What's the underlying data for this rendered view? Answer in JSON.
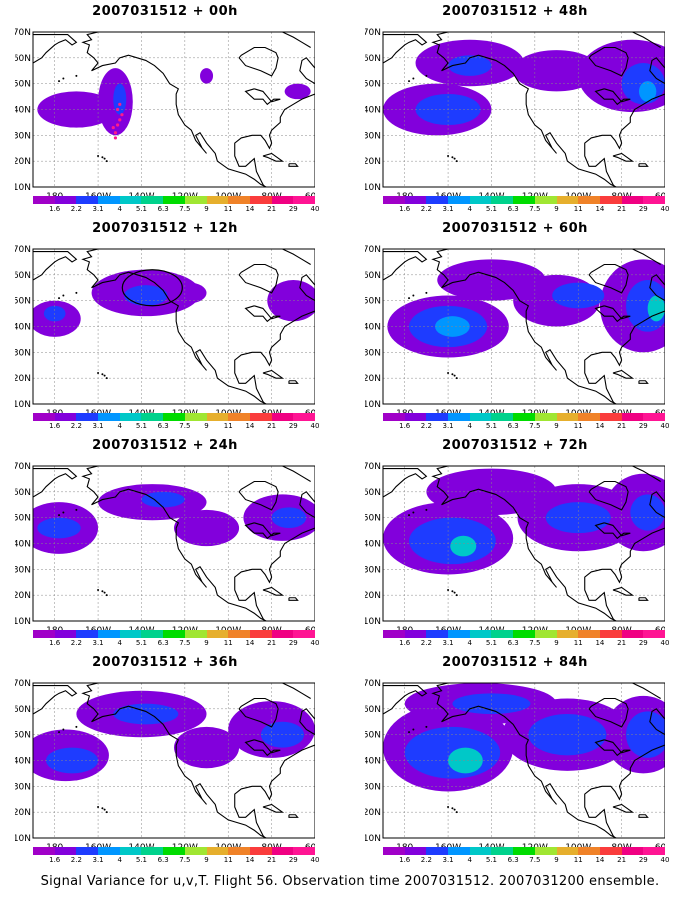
{
  "panels": [
    {
      "title": "2007031512 + 00h",
      "lead": "00h",
      "circle": false,
      "blobs": [
        {
          "lon": -170,
          "lat": 40,
          "rx": 18,
          "ry": 7,
          "level": 1
        },
        {
          "lon": -152,
          "lat": 43,
          "rx": 8,
          "ry": 13,
          "level": 1
        },
        {
          "lon": -150,
          "lat": 44,
          "rx": 3,
          "ry": 6,
          "level": 2
        },
        {
          "lon": -110,
          "lat": 53,
          "rx": 3,
          "ry": 3,
          "level": 1
        },
        {
          "lon": -68,
          "lat": 47,
          "rx": 6,
          "ry": 3,
          "level": 1
        }
      ]
    },
    {
      "title": "2007031512 + 48h",
      "lead": "48h",
      "circle": false,
      "blobs": [
        {
          "lon": -165,
          "lat": 40,
          "rx": 25,
          "ry": 10,
          "level": 1
        },
        {
          "lon": -160,
          "lat": 40,
          "rx": 15,
          "ry": 6,
          "level": 2
        },
        {
          "lon": -150,
          "lat": 58,
          "rx": 25,
          "ry": 9,
          "level": 1
        },
        {
          "lon": -150,
          "lat": 57,
          "rx": 10,
          "ry": 4,
          "level": 2
        },
        {
          "lon": -110,
          "lat": 55,
          "rx": 20,
          "ry": 8,
          "level": 1
        },
        {
          "lon": -75,
          "lat": 53,
          "rx": 25,
          "ry": 14,
          "level": 1
        },
        {
          "lon": -70,
          "lat": 50,
          "rx": 10,
          "ry": 8,
          "level": 2
        },
        {
          "lon": -68,
          "lat": 47,
          "rx": 4,
          "ry": 4,
          "level": 3
        }
      ]
    },
    {
      "title": "2007031512 + 12h",
      "lead": "12h",
      "circle": true,
      "blobs": [
        {
          "lon": -180,
          "lat": 43,
          "rx": 12,
          "ry": 7,
          "level": 1
        },
        {
          "lon": -180,
          "lat": 45,
          "rx": 5,
          "ry": 3,
          "level": 2
        },
        {
          "lon": -138,
          "lat": 53,
          "rx": 25,
          "ry": 9,
          "level": 1
        },
        {
          "lon": -138,
          "lat": 52,
          "rx": 10,
          "ry": 4,
          "level": 2
        },
        {
          "lon": -118,
          "lat": 53,
          "rx": 8,
          "ry": 4,
          "level": 1
        },
        {
          "lon": -70,
          "lat": 50,
          "rx": 12,
          "ry": 8,
          "level": 1
        }
      ]
    },
    {
      "title": "2007031512 + 60h",
      "lead": "60h",
      "circle": false,
      "blobs": [
        {
          "lon": -160,
          "lat": 40,
          "rx": 28,
          "ry": 12,
          "level": 1
        },
        {
          "lon": -160,
          "lat": 40,
          "rx": 18,
          "ry": 8,
          "level": 2
        },
        {
          "lon": -158,
          "lat": 40,
          "rx": 8,
          "ry": 4,
          "level": 3
        },
        {
          "lon": -140,
          "lat": 58,
          "rx": 25,
          "ry": 8,
          "level": 1
        },
        {
          "lon": -110,
          "lat": 50,
          "rx": 20,
          "ry": 10,
          "level": 1
        },
        {
          "lon": -100,
          "lat": 52,
          "rx": 12,
          "ry": 5,
          "level": 2
        },
        {
          "lon": -70,
          "lat": 48,
          "rx": 20,
          "ry": 18,
          "level": 1
        },
        {
          "lon": -68,
          "lat": 48,
          "rx": 10,
          "ry": 10,
          "level": 2
        },
        {
          "lon": -64,
          "lat": 47,
          "rx": 4,
          "ry": 5,
          "level": 4
        }
      ]
    },
    {
      "title": "2007031512 + 24h",
      "lead": "24h",
      "circle": false,
      "blobs": [
        {
          "lon": -178,
          "lat": 46,
          "rx": 18,
          "ry": 10,
          "level": 1
        },
        {
          "lon": -178,
          "lat": 46,
          "rx": 10,
          "ry": 4,
          "level": 2
        },
        {
          "lon": -135,
          "lat": 56,
          "rx": 25,
          "ry": 7,
          "level": 1
        },
        {
          "lon": -130,
          "lat": 57,
          "rx": 10,
          "ry": 3,
          "level": 2
        },
        {
          "lon": -110,
          "lat": 46,
          "rx": 15,
          "ry": 7,
          "level": 1
        },
        {
          "lon": -75,
          "lat": 50,
          "rx": 18,
          "ry": 9,
          "level": 1
        },
        {
          "lon": -72,
          "lat": 50,
          "rx": 8,
          "ry": 4,
          "level": 2
        }
      ]
    },
    {
      "title": "2007031512 + 72h",
      "lead": "72h",
      "circle": false,
      "blobs": [
        {
          "lon": -160,
          "lat": 42,
          "rx": 30,
          "ry": 14,
          "level": 1
        },
        {
          "lon": -158,
          "lat": 41,
          "rx": 20,
          "ry": 9,
          "level": 2
        },
        {
          "lon": -153,
          "lat": 39,
          "rx": 6,
          "ry": 4,
          "level": 4
        },
        {
          "lon": -140,
          "lat": 60,
          "rx": 30,
          "ry": 9,
          "level": 1
        },
        {
          "lon": -100,
          "lat": 50,
          "rx": 28,
          "ry": 13,
          "level": 1
        },
        {
          "lon": -100,
          "lat": 50,
          "rx": 15,
          "ry": 6,
          "level": 2
        },
        {
          "lon": -70,
          "lat": 52,
          "rx": 18,
          "ry": 15,
          "level": 1
        },
        {
          "lon": -68,
          "lat": 52,
          "rx": 8,
          "ry": 7,
          "level": 2
        }
      ]
    },
    {
      "title": "2007031512 + 36h",
      "lead": "36h",
      "circle": false,
      "blobs": [
        {
          "lon": -175,
          "lat": 42,
          "rx": 20,
          "ry": 10,
          "level": 1
        },
        {
          "lon": -172,
          "lat": 40,
          "rx": 12,
          "ry": 5,
          "level": 2
        },
        {
          "lon": -140,
          "lat": 58,
          "rx": 30,
          "ry": 9,
          "level": 1
        },
        {
          "lon": -138,
          "lat": 58,
          "rx": 15,
          "ry": 4,
          "level": 2
        },
        {
          "lon": -110,
          "lat": 45,
          "rx": 15,
          "ry": 8,
          "level": 1
        },
        {
          "lon": -80,
          "lat": 52,
          "rx": 20,
          "ry": 11,
          "level": 1
        },
        {
          "lon": -75,
          "lat": 50,
          "rx": 10,
          "ry": 5,
          "level": 2
        }
      ]
    },
    {
      "title": "2007031512 + 84h",
      "lead": "84h",
      "circle": false,
      "blobs": [
        {
          "lon": -160,
          "lat": 45,
          "rx": 30,
          "ry": 17,
          "level": 1
        },
        {
          "lon": -158,
          "lat": 43,
          "rx": 22,
          "ry": 10,
          "level": 2
        },
        {
          "lon": -152,
          "lat": 40,
          "rx": 8,
          "ry": 5,
          "level": 4
        },
        {
          "lon": -145,
          "lat": 62,
          "rx": 35,
          "ry": 8,
          "level": 1
        },
        {
          "lon": -140,
          "lat": 62,
          "rx": 18,
          "ry": 4,
          "level": 2
        },
        {
          "lon": -105,
          "lat": 50,
          "rx": 30,
          "ry": 14,
          "level": 1
        },
        {
          "lon": -105,
          "lat": 50,
          "rx": 18,
          "ry": 8,
          "level": 2
        },
        {
          "lon": -70,
          "lat": 50,
          "rx": 18,
          "ry": 15,
          "level": 1
        },
        {
          "lon": -68,
          "lat": 50,
          "rx": 10,
          "ry": 9,
          "level": 2
        }
      ]
    }
  ],
  "map": {
    "lon_ticks": [
      "180",
      "160W",
      "140W",
      "120W",
      "100W",
      "80W",
      "60W"
    ],
    "lat_ticks": [
      "10N",
      "20N",
      "30N",
      "40N",
      "50N",
      "60N",
      "70N"
    ],
    "lon_range": [
      -190,
      -60
    ],
    "lat_range": [
      10,
      70
    ]
  },
  "colorbar": {
    "labels": [
      "1.6",
      "2.2",
      "3.1",
      "4",
      "5.1",
      "6.3",
      "7.5",
      "9",
      "11",
      "14",
      "21",
      "29",
      "40"
    ],
    "colors": [
      "#a000c8",
      "#8200dc",
      "#1e3cff",
      "#0096ff",
      "#00c8c8",
      "#00d28c",
      "#00dc00",
      "#a0e632",
      "#e6af2d",
      "#f08228",
      "#fa3c3c",
      "#f00082",
      "#ff1493"
    ]
  },
  "caption": "Signal Variance for u,v,T. Flight 56. Observation time 2007031512. 2007031200 ensemble."
}
